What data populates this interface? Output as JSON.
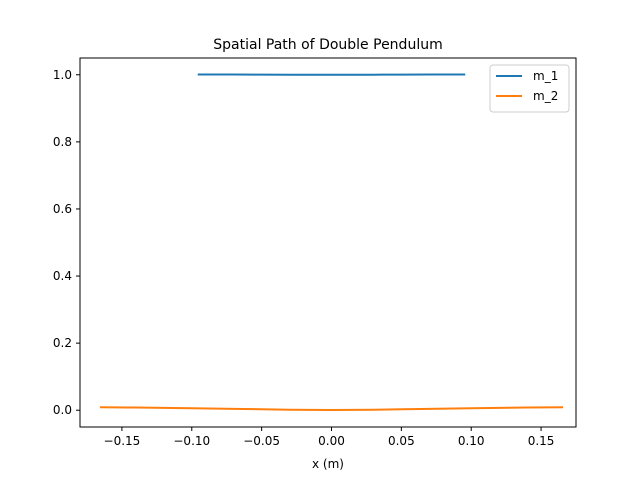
{
  "chart_data": {
    "type": "line",
    "title": "Spatial Path of Double Pendulum",
    "xlabel": "x (m)",
    "ylabel": "",
    "xlim": [
      -0.18,
      0.175
    ],
    "ylim": [
      -0.05,
      1.05
    ],
    "xticks": [
      {
        "value": -0.15,
        "label": "−0.15"
      },
      {
        "value": -0.1,
        "label": "−0.10"
      },
      {
        "value": -0.05,
        "label": "−0.05"
      },
      {
        "value": 0.0,
        "label": "0.00"
      },
      {
        "value": 0.05,
        "label": "0.05"
      },
      {
        "value": 0.1,
        "label": "0.10"
      },
      {
        "value": 0.15,
        "label": "0.15"
      }
    ],
    "yticks": [
      {
        "value": 0.0,
        "label": "0.0"
      },
      {
        "value": 0.2,
        "label": "0.2"
      },
      {
        "value": 0.4,
        "label": "0.4"
      },
      {
        "value": 0.6,
        "label": "0.6"
      },
      {
        "value": 0.8,
        "label": "0.8"
      },
      {
        "value": 1.0,
        "label": "1.0"
      }
    ],
    "grid": false,
    "legend_position": "top-right",
    "series": [
      {
        "name": "m_1",
        "color": "#1f77b4",
        "x": [
          -0.095,
          -0.07,
          -0.05,
          -0.03,
          -0.01,
          0.0,
          0.01,
          0.03,
          0.05,
          0.07,
          0.095
        ],
        "y": [
          1.001,
          1.001,
          1.0005,
          1.0002,
          1.0,
          0.9999,
          1.0,
          1.0002,
          1.0005,
          1.001,
          1.001
        ]
      },
      {
        "name": "m_2",
        "color": "#ff7f0e",
        "x": [
          -0.165,
          -0.14,
          -0.12,
          -0.1,
          -0.07,
          -0.05,
          -0.03,
          0.0,
          0.03,
          0.05,
          0.07,
          0.1,
          0.12,
          0.14,
          0.165
        ],
        "y": [
          0.009,
          0.008,
          0.007,
          0.006,
          0.004,
          0.003,
          0.0015,
          0.0005,
          0.0015,
          0.003,
          0.004,
          0.006,
          0.007,
          0.008,
          0.009
        ]
      }
    ]
  }
}
